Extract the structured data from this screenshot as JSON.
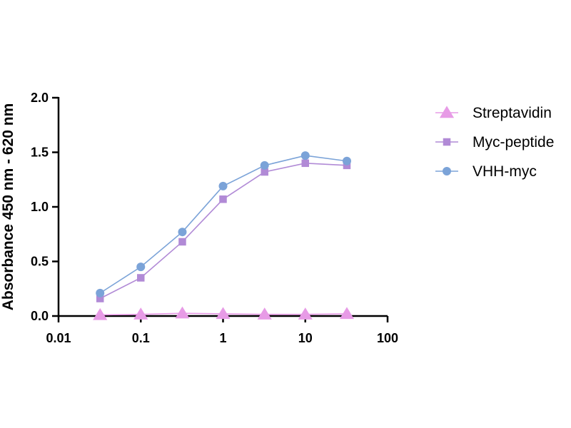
{
  "chart_data": {
    "type": "line",
    "title": "",
    "xlabel": "",
    "ylabel": "Absorbance 450 nm - 620 nm",
    "x_scale": "log",
    "xlim": [
      0.01,
      100
    ],
    "ylim": [
      0,
      2.0
    ],
    "x_ticks": [
      0.01,
      0.1,
      1,
      10,
      100
    ],
    "x_tick_labels": [
      "0.01",
      "0.1",
      "1",
      "10",
      "100"
    ],
    "y_ticks": [
      0,
      0.5,
      1.0,
      1.5,
      2.0
    ],
    "y_tick_labels": [
      "0.0",
      "0.5",
      "1.0",
      "1.5",
      "2.0"
    ],
    "grid": false,
    "legend_position": "right",
    "x": [
      0.032,
      0.1,
      0.32,
      1,
      3.2,
      10,
      32
    ],
    "series": [
      {
        "name": "Streptavidin",
        "marker": "triangle",
        "color": "#e79be6",
        "values": [
          0.01,
          0.015,
          0.025,
          0.02,
          0.015,
          0.015,
          0.02
        ]
      },
      {
        "name": "Myc-peptide",
        "marker": "square",
        "color": "#b18ad6",
        "values": [
          0.16,
          0.35,
          0.68,
          1.07,
          1.32,
          1.4,
          1.38
        ]
      },
      {
        "name": "VHH-myc",
        "marker": "circle",
        "color": "#7ba3d8",
        "values": [
          0.21,
          0.45,
          0.77,
          1.19,
          1.38,
          1.47,
          1.42
        ]
      }
    ]
  }
}
